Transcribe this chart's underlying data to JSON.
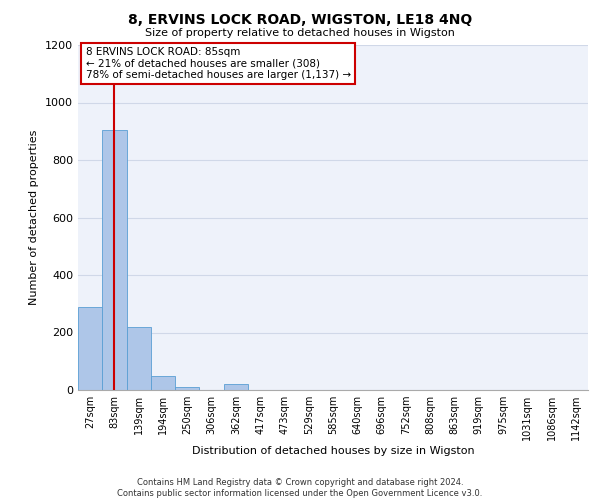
{
  "title": "8, ERVINS LOCK ROAD, WIGSTON, LE18 4NQ",
  "subtitle": "Size of property relative to detached houses in Wigston",
  "xlabel": "Distribution of detached houses by size in Wigston",
  "ylabel": "Number of detached properties",
  "bar_color": "#aec6e8",
  "bar_edge_color": "#5a9fd4",
  "categories": [
    "27sqm",
    "83sqm",
    "139sqm",
    "194sqm",
    "250sqm",
    "306sqm",
    "362sqm",
    "417sqm",
    "473sqm",
    "529sqm",
    "585sqm",
    "640sqm",
    "696sqm",
    "752sqm",
    "808sqm",
    "863sqm",
    "919sqm",
    "975sqm",
    "1031sqm",
    "1086sqm",
    "1142sqm"
  ],
  "values": [
    290,
    905,
    220,
    50,
    12,
    0,
    20,
    0,
    0,
    0,
    0,
    0,
    0,
    0,
    0,
    0,
    0,
    0,
    0,
    0,
    0
  ],
  "ylim": [
    0,
    1200
  ],
  "yticks": [
    0,
    200,
    400,
    600,
    800,
    1000,
    1200
  ],
  "annotation_box_text": "8 ERVINS LOCK ROAD: 85sqm\n← 21% of detached houses are smaller (308)\n78% of semi-detached houses are larger (1,137) →",
  "vline_color": "#cc0000",
  "box_edge_color": "#cc0000",
  "grid_color": "#d0d8e8",
  "background_color": "#eef2fa",
  "footer_line1": "Contains HM Land Registry data © Crown copyright and database right 2024.",
  "footer_line2": "Contains public sector information licensed under the Open Government Licence v3.0."
}
